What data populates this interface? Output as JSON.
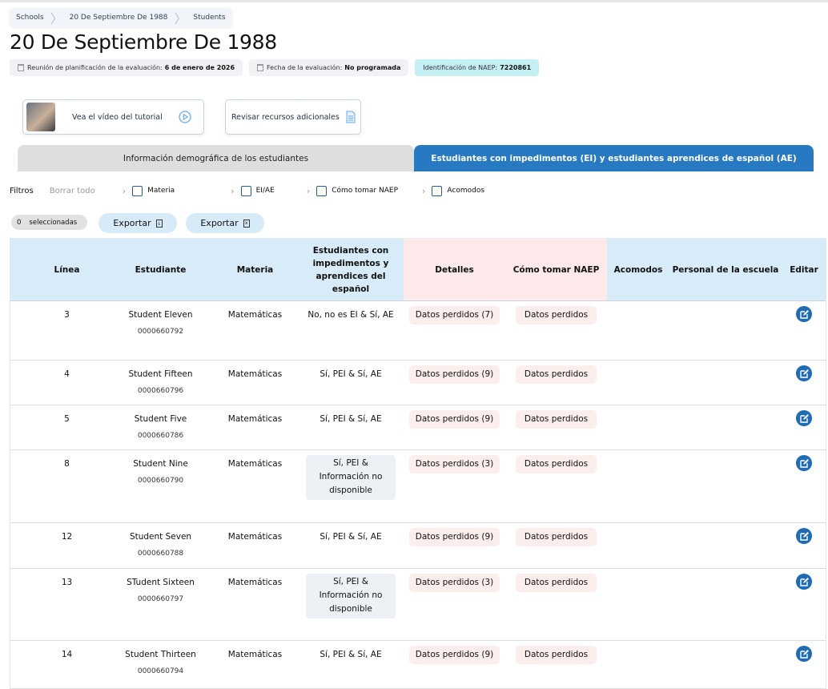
{
  "breadcrumb": [
    "Schools",
    "20 De Septiembre De 1988",
    "Students"
  ],
  "title": "20 De Septiembre De 1988",
  "chips": {
    "meeting_label": "Reunión de planificación de la evaluación:",
    "meeting_value": "6 de enero de 2026",
    "date_label": "Fecha de la evaluación:",
    "date_value": "No programada",
    "naep_label": "Identificación de NAEP:",
    "naep_value": "7220861"
  },
  "cards": {
    "video": "Vea el vídeo del tutorial",
    "resources": "Revisar recursos adicionales"
  },
  "tabs": [
    "Información demográfica de los estudiantes",
    "Estudiantes con impedimentos (EI) y estudiantes aprendices de español (AE)"
  ],
  "filters": {
    "label": "Filtros",
    "clear": "Borrar todo",
    "items": [
      "Materia",
      "EI/AE",
      "Cómo tomar NAEP",
      "Acomodos"
    ]
  },
  "selected": {
    "count": "0",
    "label": "seleccionadas"
  },
  "export": [
    "Exportar",
    "Exportar"
  ],
  "columns": [
    "Línea",
    "Estudiante",
    "Materia",
    "Estudiantes con impedimentos y aprendices del español",
    "Detalles",
    "Cómo tomar NAEP",
    "Acomodos",
    "Personal de la escuela",
    "Editar"
  ],
  "rows": [
    {
      "line": "3",
      "name": "Student Eleven",
      "id": "0000660792",
      "subject": "Matemáticas",
      "eiae": "No, no es EI & Sí, AE",
      "details": "Datos perdidos (7)",
      "how": "Datos perdidos"
    },
    {
      "line": "4",
      "name": "Student Fifteen",
      "id": "0000660796",
      "subject": "Matemáticas",
      "eiae": "Sí, PEI & Sí, AE",
      "details": "Datos perdidos (9)",
      "how": "Datos perdidos"
    },
    {
      "line": "5",
      "name": "Student Five",
      "id": "0000660786",
      "subject": "Matemáticas",
      "eiae": "Sí, PEI & Sí, AE",
      "details": "Datos perdidos (9)",
      "how": "Datos perdidos"
    },
    {
      "line": "8",
      "name": "Student Nine",
      "id": "0000660790",
      "subject": "Matemáticas",
      "eiae": "Sí, PEI & Información no disponible",
      "details": "Datos perdidos (3)",
      "how": "Datos perdidos"
    },
    {
      "line": "12",
      "name": "Student Seven",
      "id": "0000660788",
      "subject": "Matemáticas",
      "eiae": "Sí, PEI & Sí, AE",
      "details": "Datos perdidos (9)",
      "how": "Datos perdidos"
    },
    {
      "line": "13",
      "name": "STudent Sixteen",
      "id": "0000660797",
      "subject": "Matemáticas",
      "eiae": "Sí, PEI & Información no disponible",
      "details": "Datos perdidos (3)",
      "how": "Datos perdidos"
    },
    {
      "line": "14",
      "name": "Student Thirteen",
      "id": "0000660794",
      "subject": "Matemáticas",
      "eiae": "Sí, PEI & Sí, AE",
      "details": "Datos perdidos (9)",
      "how": "Datos perdidos"
    }
  ],
  "colors": {
    "accent": "#2779c1",
    "header": "#d8ebf9",
    "missing": "#fdeeee"
  }
}
